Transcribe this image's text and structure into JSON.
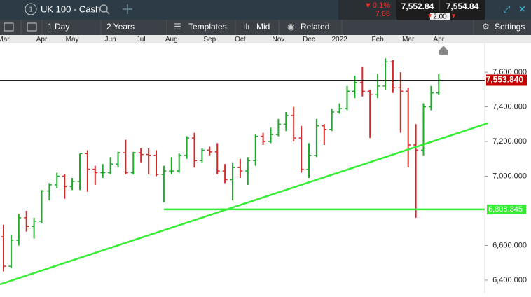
{
  "header": {
    "tab_number": "1",
    "instrument": "UK 100 - Cash",
    "change_pct": "0.1%",
    "change": "7.68",
    "sell": "7,552.84",
    "spread": "2.00",
    "buy": "7,554.84"
  },
  "toolbar": {
    "interval": "1 Day",
    "range": "2 Years",
    "templates": "Templates",
    "price": "Mid",
    "related": "Related",
    "settings": "Settings"
  },
  "chart_data": {
    "type": "ohlc",
    "categories": [
      "Mar",
      null,
      null,
      null,
      null,
      "Apr",
      null,
      null,
      null,
      "May",
      null,
      null,
      null,
      null,
      "Jun",
      null,
      null,
      null,
      "Jul",
      null,
      null,
      null,
      "Aug",
      null,
      null,
      null,
      null,
      "Sep",
      null,
      null,
      null,
      "Oct",
      null,
      null,
      null,
      null,
      "Nov",
      null,
      null,
      null,
      "Dec",
      null,
      null,
      null,
      "2022",
      null,
      null,
      null,
      null,
      "Feb",
      null,
      null,
      null,
      "Mar",
      null,
      null,
      null,
      "Apr"
    ],
    "ohlc": [
      [
        6650,
        6720,
        6450,
        6480
      ],
      [
        6480,
        6660,
        6470,
        6630
      ],
      [
        6630,
        6780,
        6600,
        6760
      ],
      [
        6760,
        6800,
        6680,
        6710
      ],
      [
        6710,
        6760,
        6640,
        6740
      ],
      [
        6740,
        6920,
        6730,
        6915
      ],
      [
        6915,
        6960,
        6860,
        6950
      ],
      [
        6950,
        7020,
        6930,
        7000
      ],
      [
        7000,
        7010,
        6870,
        6940
      ],
      [
        6940,
        6990,
        6920,
        6970
      ],
      [
        6970,
        7130,
        6920,
        7130
      ],
      [
        7130,
        7150,
        6910,
        7040
      ],
      [
        7040,
        7060,
        6950,
        7020
      ],
      [
        7020,
        7070,
        6990,
        7020
      ],
      [
        7020,
        7110,
        7010,
        7070
      ],
      [
        7070,
        7140,
        7050,
        7135
      ],
      [
        7135,
        7210,
        7010,
        7020
      ],
      [
        7020,
        7140,
        7010,
        7135
      ],
      [
        7135,
        7160,
        7080,
        7125
      ],
      [
        7125,
        7160,
        7010,
        7120
      ],
      [
        7120,
        7150,
        7000,
        7010
      ],
      [
        7010,
        7060,
        6850,
        7030
      ],
      [
        7030,
        7110,
        7010,
        7030
      ],
      [
        7030,
        7130,
        7020,
        7120
      ],
      [
        7120,
        7230,
        7100,
        7220
      ],
      [
        7220,
        7250,
        7050,
        7090
      ],
      [
        7090,
        7160,
        7080,
        7150
      ],
      [
        7150,
        7170,
        7120,
        7140
      ],
      [
        7140,
        7190,
        7010,
        7030
      ],
      [
        7030,
        7070,
        6960,
        6980
      ],
      [
        6980,
        7080,
        6860,
        7050
      ],
      [
        7050,
        7100,
        6990,
        7030
      ],
      [
        7030,
        7110,
        6950,
        7090
      ],
      [
        7090,
        7240,
        7060,
        7230
      ],
      [
        7230,
        7250,
        7180,
        7200
      ],
      [
        7200,
        7280,
        7190,
        7240
      ],
      [
        7240,
        7330,
        7230,
        7300
      ],
      [
        7300,
        7370,
        7260,
        7350
      ],
      [
        7350,
        7400,
        7200,
        7220
      ],
      [
        7220,
        7290,
        7020,
        7040
      ],
      [
        7040,
        7190,
        6990,
        7120
      ],
      [
        7120,
        7330,
        7110,
        7290
      ],
      [
        7290,
        7300,
        7180,
        7270
      ],
      [
        7270,
        7390,
        7260,
        7370
      ],
      [
        7370,
        7420,
        7360,
        7390
      ],
      [
        7390,
        7520,
        7380,
        7490
      ],
      [
        7490,
        7580,
        7450,
        7540
      ],
      [
        7540,
        7630,
        7460,
        7490
      ],
      [
        7490,
        7500,
        7220,
        7470
      ],
      [
        7470,
        7590,
        7450,
        7520
      ],
      [
        7520,
        7680,
        7500,
        7660
      ],
      [
        7660,
        7670,
        7480,
        7510
      ],
      [
        7510,
        7600,
        7250,
        7490
      ],
      [
        7490,
        7510,
        7050,
        7180
      ],
      [
        7180,
        7300,
        6760,
        7150
      ],
      [
        7150,
        7420,
        7120,
        7400
      ],
      [
        7400,
        7520,
        7380,
        7480
      ],
      [
        7480,
        7590,
        7470,
        7553.84
      ]
    ],
    "up_color": "#1faa2a",
    "down_color": "#d42a2a",
    "ylim": [
      6323,
      7766
    ],
    "yticks": [
      {
        "value": 6400,
        "label": "6,400.000"
      },
      {
        "value": 6600,
        "label": "6,600.000"
      },
      {
        "value": 7000,
        "label": "7,000.000"
      },
      {
        "value": 7200,
        "label": "7,200.000"
      },
      {
        "value": 7400,
        "label": "7,400.000"
      },
      {
        "value": 7600,
        "label": "7,600.000"
      }
    ],
    "current_price": {
      "value": 7553.84,
      "label": "7,553.840"
    },
    "support": {
      "value": 6808.345,
      "label": "6,808.345",
      "from_index": 21,
      "color": "#33ee33"
    },
    "trendline": {
      "values": [
        6376,
        7305
      ],
      "color": "#33ee33"
    }
  }
}
